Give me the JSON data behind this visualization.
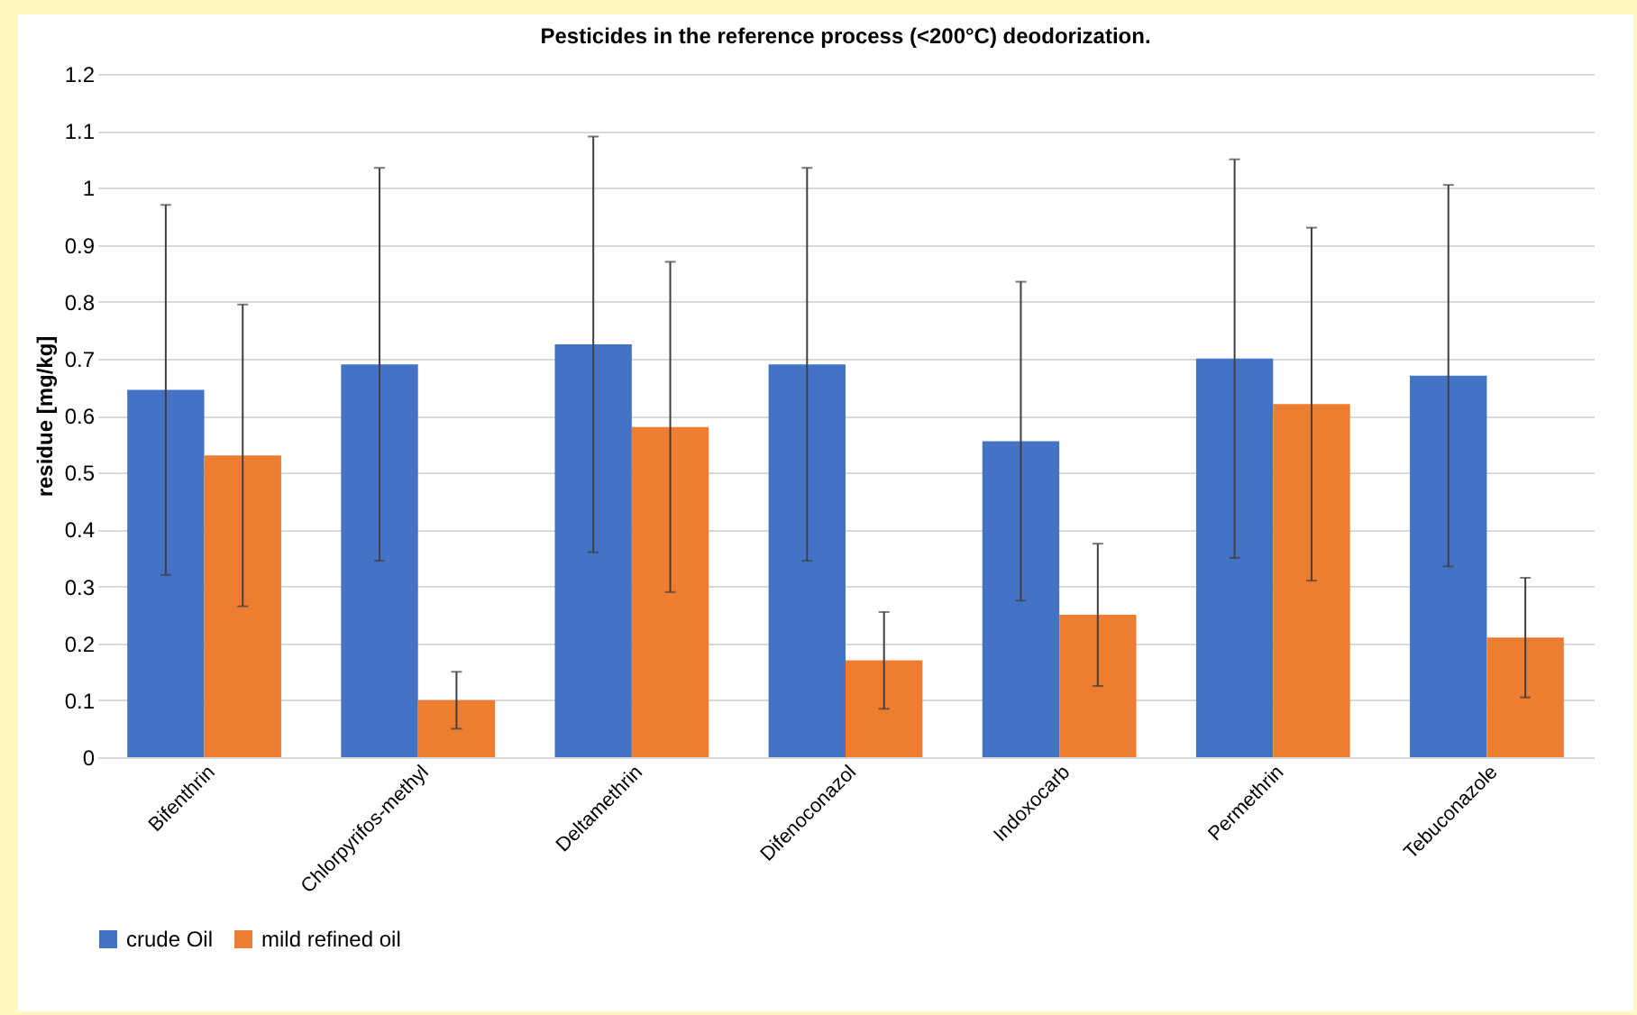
{
  "chart_data": {
    "type": "bar",
    "title": "Pesticides in the reference process (<200°C) deodorization.",
    "ylabel": "residue  [mg/kg]",
    "categories": [
      "Bifenthrin",
      "Chlorpyrifos-methyl",
      "Deltamethrin",
      "Difenoconazol",
      "Indoxocarb",
      "Permethrin",
      "Tebuconazole"
    ],
    "series": [
      {
        "name": "crude Oil",
        "color": "#4472c4",
        "values": [
          0.645,
          0.69,
          0.725,
          0.69,
          0.555,
          0.7,
          0.67
        ],
        "errors": [
          [
            0.32,
            0.97
          ],
          [
            0.345,
            1.035
          ],
          [
            0.36,
            1.09
          ],
          [
            0.345,
            1.035
          ],
          [
            0.275,
            0.835
          ],
          [
            0.35,
            1.05
          ],
          [
            0.335,
            1.005
          ]
        ]
      },
      {
        "name": "mild refined oil",
        "color": "#ed7d31",
        "values": [
          0.53,
          0.1,
          0.58,
          0.17,
          0.25,
          0.62,
          0.21
        ],
        "errors": [
          [
            0.265,
            0.795
          ],
          [
            0.05,
            0.15
          ],
          [
            0.29,
            0.87
          ],
          [
            0.085,
            0.255
          ],
          [
            0.125,
            0.375
          ],
          [
            0.31,
            0.93
          ],
          [
            0.105,
            0.315
          ]
        ]
      }
    ],
    "ylim": [
      0,
      1.2
    ],
    "yticks": [
      0,
      0.1,
      0.2,
      0.3,
      0.4,
      0.5,
      0.6,
      0.7,
      0.8,
      0.9,
      1,
      1.1,
      1.2
    ],
    "grid": "y",
    "legend": "bottom"
  }
}
